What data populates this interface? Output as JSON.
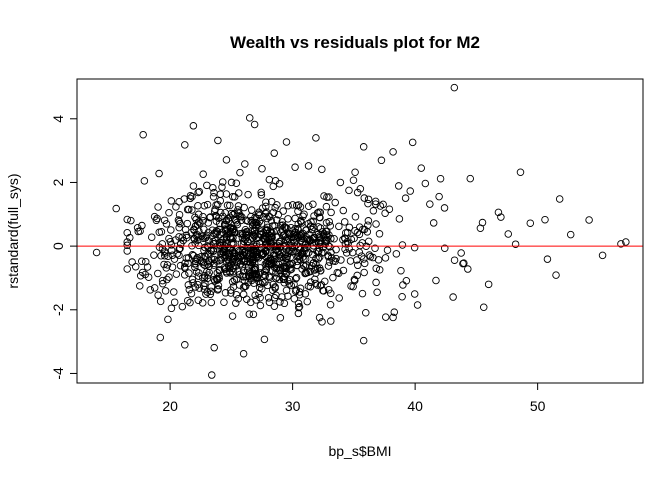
{
  "chart_data": {
    "type": "scatter",
    "title": "Wealth vs residuals plot for M2",
    "xlabel": "bp_s$BMI",
    "ylabel": "rstandard(full_sys)",
    "xlim": [
      12.4,
      58.6
    ],
    "ylim": [
      -4.3,
      5.25
    ],
    "x_ticks": [
      "20",
      "30",
      "40",
      "50"
    ],
    "y_ticks": [
      "-4",
      "-2",
      "0",
      "2",
      "4"
    ],
    "reference_line": {
      "y": 0,
      "color": "#ff0000"
    },
    "grid": false,
    "legend": "none",
    "point_color": "#000000",
    "points": [
      [
        43.2,
        4.98
      ],
      [
        26.5,
        4.03
      ],
      [
        26.9,
        3.82
      ],
      [
        17.8,
        3.5
      ],
      [
        31.9,
        3.4
      ],
      [
        23.9,
        3.32
      ],
      [
        39.8,
        3.26
      ],
      [
        29.5,
        3.27
      ],
      [
        35.8,
        3.12
      ],
      [
        21.9,
        3.78
      ],
      [
        38.2,
        2.96
      ],
      [
        21.2,
        3.18
      ],
      [
        28.5,
        2.92
      ],
      [
        40.5,
        2.45
      ],
      [
        48.6,
        2.32
      ],
      [
        44.5,
        2.12
      ],
      [
        19.1,
        2.28
      ],
      [
        17.9,
        2.05
      ],
      [
        33.9,
        2.0
      ],
      [
        39.6,
        1.73
      ],
      [
        46.8,
        1.06
      ],
      [
        51.8,
        1.48
      ],
      [
        54.2,
        0.82
      ],
      [
        50.6,
        0.83
      ],
      [
        41.2,
        1.32
      ],
      [
        42.4,
        1.2
      ],
      [
        45.5,
        0.74
      ],
      [
        47.6,
        0.38
      ],
      [
        49.4,
        0.72
      ],
      [
        52.7,
        0.36
      ],
      [
        56.8,
        0.07
      ],
      [
        57.2,
        0.13
      ],
      [
        55.3,
        -0.29
      ],
      [
        51.5,
        -0.91
      ],
      [
        50.8,
        -0.41
      ],
      [
        48.2,
        0.06
      ],
      [
        44.3,
        -0.72
      ],
      [
        46.0,
        -1.2
      ],
      [
        45.6,
        -1.92
      ],
      [
        43.1,
        -1.6
      ],
      [
        40.2,
        -1.85
      ],
      [
        38.2,
        -2.24
      ],
      [
        37.6,
        -2.23
      ],
      [
        35.8,
        -2.97
      ],
      [
        27.7,
        -2.93
      ],
      [
        26.0,
        -3.38
      ],
      [
        23.6,
        -3.19
      ],
      [
        19.2,
        -2.87
      ],
      [
        21.2,
        -3.1
      ],
      [
        23.4,
        -4.05
      ],
      [
        14.0,
        -0.2
      ],
      [
        15.6,
        1.18
      ],
      [
        16.8,
        0.8
      ],
      [
        17.4,
        0.46
      ],
      [
        16.9,
        -0.5
      ],
      [
        17.6,
        -0.93
      ],
      [
        18.5,
        0.28
      ],
      [
        19.4,
        -1.18
      ],
      [
        20.3,
        -1.44
      ],
      [
        21.0,
        -1.9
      ],
      [
        22.3,
        -1.7
      ],
      [
        25.1,
        -2.2
      ],
      [
        29.0,
        -2.25
      ],
      [
        30.5,
        -1.93
      ],
      [
        32.4,
        -2.38
      ],
      [
        33.8,
        -1.63
      ],
      [
        36.9,
        -1.45
      ],
      [
        39.0,
        -1.22
      ],
      [
        41.7,
        -1.08
      ],
      [
        43.9,
        -0.55
      ],
      [
        20.1,
        1.42
      ],
      [
        22.7,
        2.26
      ],
      [
        24.6,
        2.71
      ],
      [
        26.1,
        2.58
      ],
      [
        27.5,
        2.43
      ],
      [
        30.2,
        2.48
      ],
      [
        32.8,
        1.54
      ],
      [
        34.6,
        1.75
      ],
      [
        36.2,
        1.47
      ],
      [
        37.9,
        1.16
      ],
      [
        31.3,
        2.52
      ],
      [
        28.1,
        2.09
      ],
      [
        25.7,
        2.31
      ],
      [
        23.0,
        1.91
      ],
      [
        35.1,
        2.32
      ]
    ],
    "cluster": {
      "center_x": 26.5,
      "spread_x": 4.2,
      "center_y": -0.1,
      "spread_y": 0.82,
      "count": 1050
    }
  }
}
